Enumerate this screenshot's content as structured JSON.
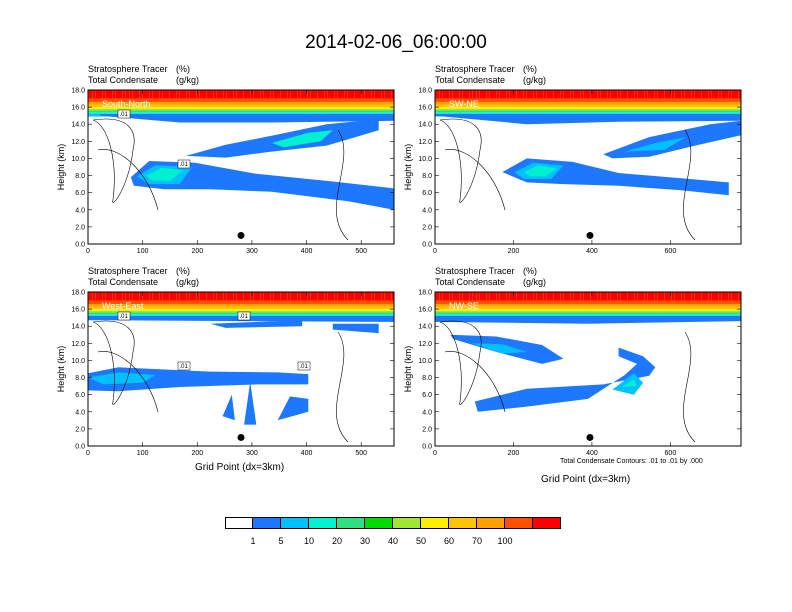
{
  "title": "2014-02-06_06:00:00",
  "contour_note": "Total Condensate Contours: .01 to .01 by .000",
  "colors": {
    "fill_levels": [
      "#ffffff",
      "#1e78ff",
      "#00c0ff",
      "#00f0d0",
      "#30e080",
      "#00dc00",
      "#a0e632",
      "#ffee00",
      "#ffc400",
      "#ffa000",
      "#ff5000",
      "#ff0000"
    ]
  },
  "chart_data": [
    {
      "type": "heatmap",
      "panel_label": "South-North",
      "subtitle_left_1": "Stratosphere Tracer",
      "subtitle_unit_1": "(%)",
      "subtitle_left_2": "Total Condensate",
      "subtitle_unit_2": "(g/kg)",
      "ylabel": "Height (km)",
      "xlabel": "",
      "xlim": [
        0,
        560
      ],
      "ylim": [
        0,
        18
      ],
      "x_ticks": [
        0,
        100,
        200,
        300,
        400,
        500
      ],
      "y_ticks": [
        "0.0",
        "2.0",
        "4.0",
        "6.0",
        "8.0",
        "10.0",
        "12.0",
        "14.0",
        "16.0",
        "18.0"
      ],
      "marker_x": 280,
      "contour_labels": [
        ".01",
        ".01"
      ],
      "tropopause_base_km": 15.2
    },
    {
      "type": "heatmap",
      "panel_label": "SW-NE",
      "subtitle_left_1": "Stratosphere Tracer",
      "subtitle_unit_1": "(%)",
      "subtitle_left_2": "Total Condensate",
      "subtitle_unit_2": "(g/kg)",
      "ylabel": "Height (km)",
      "xlabel": "",
      "xlim": [
        0,
        780
      ],
      "ylim": [
        0,
        18
      ],
      "x_ticks": [
        0,
        200,
        400,
        600
      ],
      "y_ticks": [
        "0.0",
        "2.0",
        "4.0",
        "6.0",
        "8.0",
        "10.0",
        "12.0",
        "14.0",
        "16.0",
        "18.0"
      ],
      "marker_x": 395,
      "contour_labels": [],
      "tropopause_base_km": 15.0
    },
    {
      "type": "heatmap",
      "panel_label": "West-East",
      "subtitle_left_1": "Stratosphere Tracer",
      "subtitle_unit_1": "(%)",
      "subtitle_left_2": "Total Condensate",
      "subtitle_unit_2": "(g/kg)",
      "ylabel": "Height (km)",
      "xlabel": "Grid Point (dx=3km)",
      "xlim": [
        0,
        560
      ],
      "ylim": [
        0,
        18
      ],
      "x_ticks": [
        0,
        100,
        200,
        300,
        400,
        500
      ],
      "y_ticks": [
        "0.0",
        "2.0",
        "4.0",
        "6.0",
        "8.0",
        "10.0",
        "12.0",
        "14.0",
        "16.0",
        "18.0"
      ],
      "marker_x": 280,
      "contour_labels": [
        ".01",
        ".01",
        ".01",
        ".01"
      ],
      "tropopause_base_km": 15.0
    },
    {
      "type": "heatmap",
      "panel_label": "NW-SE",
      "subtitle_left_1": "Stratosphere Tracer",
      "subtitle_unit_1": "(%)",
      "subtitle_left_2": "Total Condensate",
      "subtitle_unit_2": "(g/kg)",
      "ylabel": "Height (km)",
      "xlabel": "Grid Point (dx=3km)",
      "xlim": [
        0,
        780
      ],
      "ylim": [
        0,
        18
      ],
      "x_ticks": [
        0,
        200,
        400,
        600
      ],
      "y_ticks": [
        "0.0",
        "2.0",
        "4.0",
        "6.0",
        "8.0",
        "10.0",
        "12.0",
        "14.0",
        "16.0",
        "18.0"
      ],
      "marker_x": 395,
      "contour_labels": [],
      "tropopause_base_km": 15.0
    }
  ],
  "colorbar": {
    "labels": [
      "1",
      "5",
      "10",
      "20",
      "30",
      "40",
      "50",
      "60",
      "70",
      "100"
    ],
    "colors": [
      "#ffffff",
      "#1e78ff",
      "#00c0ff",
      "#00f0d0",
      "#30e080",
      "#00dc00",
      "#a0e632",
      "#ffee00",
      "#ffc400",
      "#ffa000",
      "#ff5000",
      "#ff0000"
    ]
  }
}
